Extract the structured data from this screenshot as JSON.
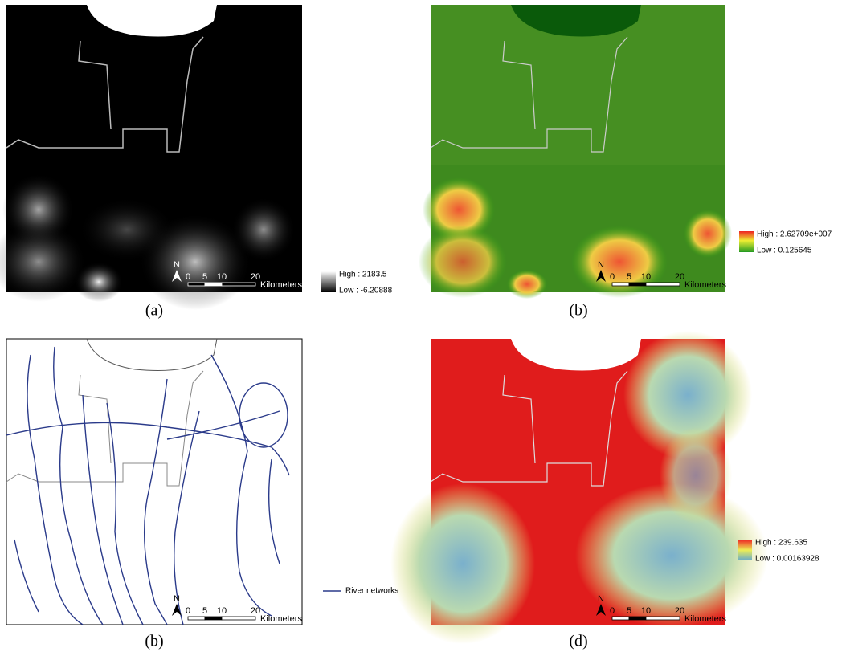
{
  "panels": [
    {
      "caption": "(a)",
      "north": "N",
      "scale": {
        "ticks": [
          0,
          5,
          10,
          20
        ],
        "unit": "Kilometers"
      },
      "legend": {
        "high": "High : 2183.5",
        "low": "Low : -6.20888"
      }
    },
    {
      "caption": "(b)",
      "north": "N",
      "scale": {
        "ticks": [
          0,
          5,
          10,
          20
        ],
        "unit": "Kilometers"
      },
      "legend": {
        "high": "High : 2.62709e+007",
        "low": "Low : 0.125645"
      }
    },
    {
      "caption": "(b)",
      "north": "N",
      "scale": {
        "ticks": [
          0,
          5,
          10,
          20
        ],
        "unit": "Kilometers"
      },
      "legend": {
        "label": "River networks"
      }
    },
    {
      "caption": "(d)",
      "north": "N",
      "scale": {
        "ticks": [
          0,
          5,
          10,
          20
        ],
        "unit": "Kilometers"
      },
      "legend": {
        "high": "High : 239.635",
        "low": "Low : 0.00163928"
      }
    }
  ]
}
